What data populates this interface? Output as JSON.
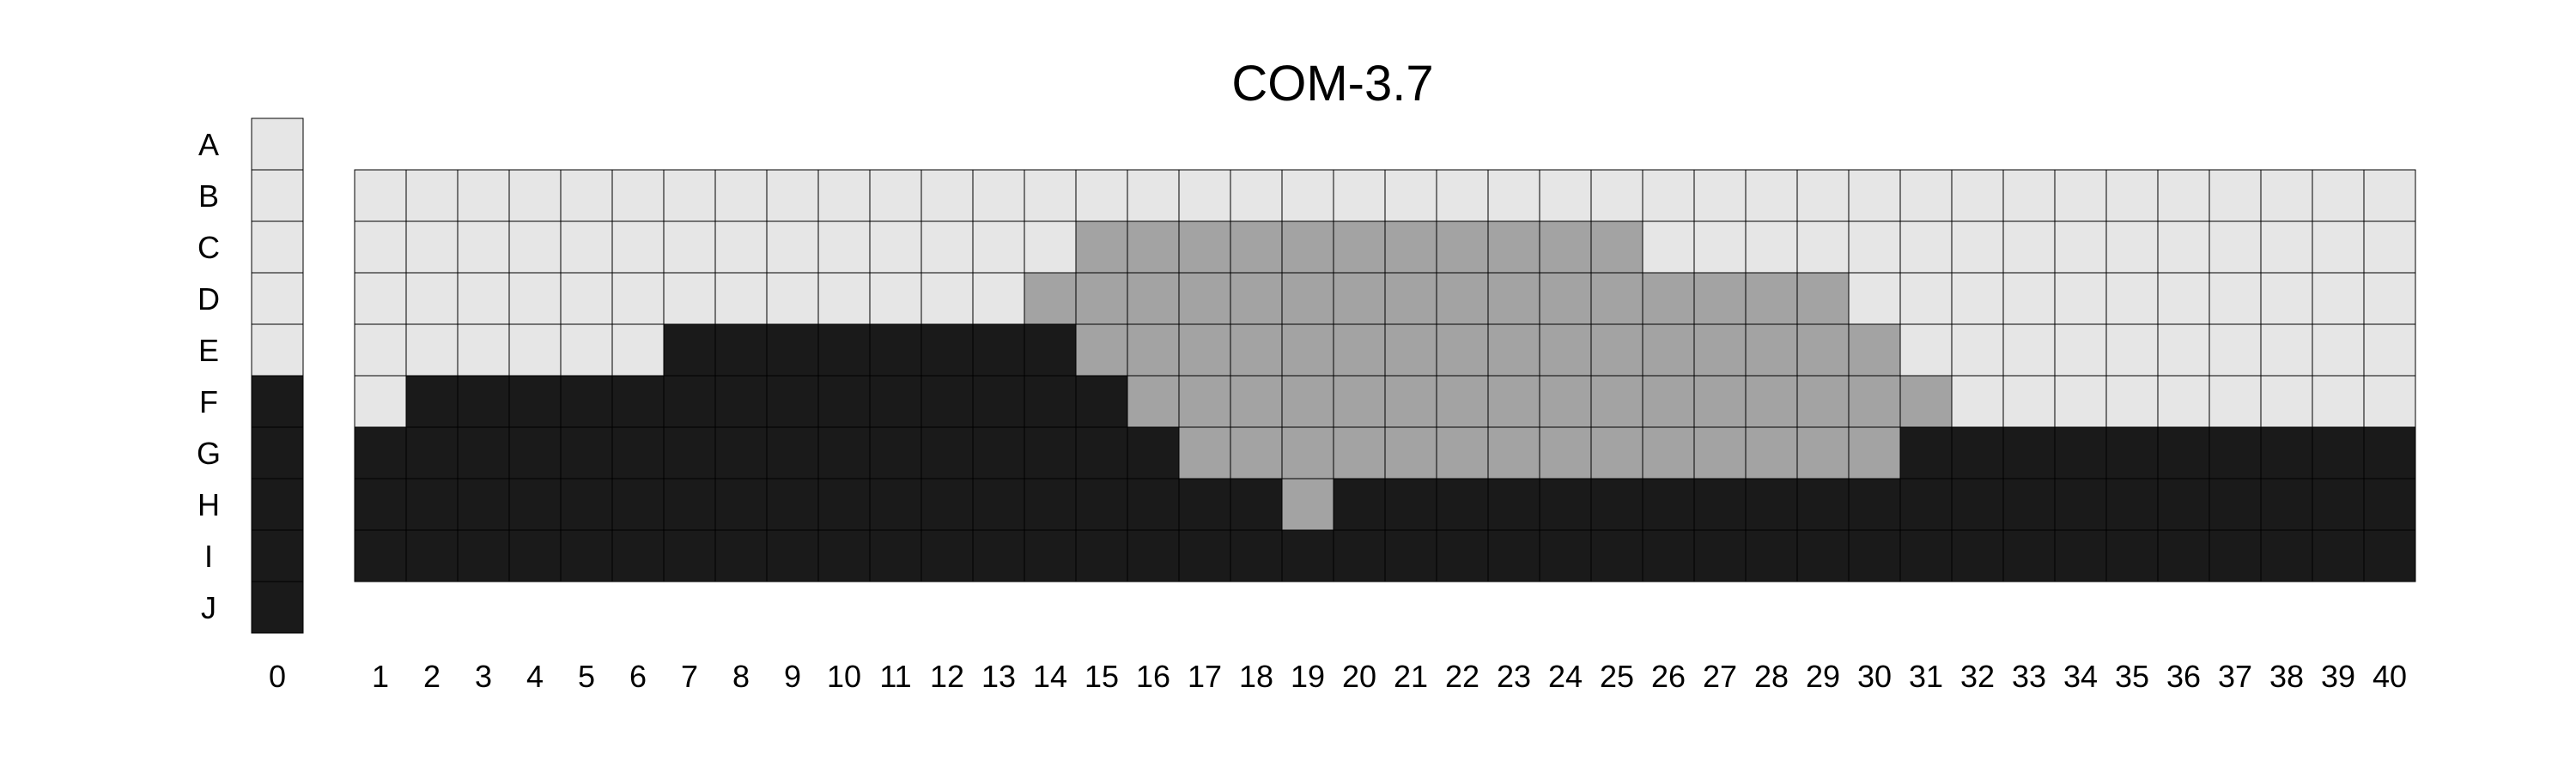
{
  "chart_data": {
    "type": "heatmap",
    "title": "COM-3.7",
    "colors": {
      "light": "#e6e6e6",
      "medium": "#a3a3a3",
      "dark": "#1a1a1a"
    },
    "rows": [
      "A",
      "B",
      "C",
      "D",
      "E",
      "F",
      "G",
      "H",
      "I",
      "J"
    ],
    "reference_column": {
      "label": "0",
      "cells": [
        "light",
        "light",
        "light",
        "light",
        "light",
        "dark",
        "dark",
        "dark",
        "dark",
        "dark"
      ]
    },
    "grid_columns": [
      "1",
      "2",
      "3",
      "4",
      "5",
      "6",
      "7",
      "8",
      "9",
      "10",
      "11",
      "12",
      "13",
      "14",
      "15",
      "16",
      "17",
      "18",
      "19",
      "20",
      "21",
      "22",
      "23",
      "24",
      "25",
      "26",
      "27",
      "28",
      "29",
      "30",
      "31",
      "32",
      "33",
      "34",
      "35",
      "36",
      "37",
      "38",
      "39",
      "40"
    ],
    "grid_rows": [
      "B",
      "C",
      "D",
      "E",
      "F",
      "G",
      "H",
      "I"
    ],
    "grid": [
      [
        "light",
        "light",
        "light",
        "light",
        "light",
        "light",
        "light",
        "light",
        "light",
        "light",
        "light",
        "light",
        "light",
        "light",
        "light",
        "light",
        "light",
        "light",
        "light",
        "light",
        "light",
        "light",
        "light",
        "light",
        "light",
        "light",
        "light",
        "light",
        "light",
        "light",
        "light",
        "light",
        "light",
        "light",
        "light",
        "light",
        "light",
        "light",
        "light",
        "light"
      ],
      [
        "light",
        "light",
        "light",
        "light",
        "light",
        "light",
        "light",
        "light",
        "light",
        "light",
        "light",
        "light",
        "light",
        "light",
        "medium",
        "medium",
        "medium",
        "medium",
        "medium",
        "medium",
        "medium",
        "medium",
        "medium",
        "medium",
        "medium",
        "light",
        "light",
        "light",
        "light",
        "light",
        "light",
        "light",
        "light",
        "light",
        "light",
        "light",
        "light",
        "light",
        "light",
        "light"
      ],
      [
        "light",
        "light",
        "light",
        "light",
        "light",
        "light",
        "light",
        "light",
        "light",
        "light",
        "light",
        "light",
        "light",
        "medium",
        "medium",
        "medium",
        "medium",
        "medium",
        "medium",
        "medium",
        "medium",
        "medium",
        "medium",
        "medium",
        "medium",
        "medium",
        "medium",
        "medium",
        "medium",
        "light",
        "light",
        "light",
        "light",
        "light",
        "light",
        "light",
        "light",
        "light",
        "light",
        "light"
      ],
      [
        "light",
        "light",
        "light",
        "light",
        "light",
        "light",
        "dark",
        "dark",
        "dark",
        "dark",
        "dark",
        "dark",
        "dark",
        "dark",
        "medium",
        "medium",
        "medium",
        "medium",
        "medium",
        "medium",
        "medium",
        "medium",
        "medium",
        "medium",
        "medium",
        "medium",
        "medium",
        "medium",
        "medium",
        "medium",
        "light",
        "light",
        "light",
        "light",
        "light",
        "light",
        "light",
        "light",
        "light",
        "light"
      ],
      [
        "light",
        "dark",
        "dark",
        "dark",
        "dark",
        "dark",
        "dark",
        "dark",
        "dark",
        "dark",
        "dark",
        "dark",
        "dark",
        "dark",
        "dark",
        "medium",
        "medium",
        "medium",
        "medium",
        "medium",
        "medium",
        "medium",
        "medium",
        "medium",
        "medium",
        "medium",
        "medium",
        "medium",
        "medium",
        "medium",
        "medium",
        "light",
        "light",
        "light",
        "light",
        "light",
        "light",
        "light",
        "light",
        "light"
      ],
      [
        "dark",
        "dark",
        "dark",
        "dark",
        "dark",
        "dark",
        "dark",
        "dark",
        "dark",
        "dark",
        "dark",
        "dark",
        "dark",
        "dark",
        "dark",
        "dark",
        "medium",
        "medium",
        "medium",
        "medium",
        "medium",
        "medium",
        "medium",
        "medium",
        "medium",
        "medium",
        "medium",
        "medium",
        "medium",
        "medium",
        "dark",
        "dark",
        "dark",
        "dark",
        "dark",
        "dark",
        "dark",
        "dark",
        "dark",
        "dark"
      ],
      [
        "dark",
        "dark",
        "dark",
        "dark",
        "dark",
        "dark",
        "dark",
        "dark",
        "dark",
        "dark",
        "dark",
        "dark",
        "dark",
        "dark",
        "dark",
        "dark",
        "dark",
        "dark",
        "medium",
        "dark",
        "dark",
        "dark",
        "dark",
        "dark",
        "dark",
        "dark",
        "dark",
        "dark",
        "dark",
        "dark",
        "dark",
        "dark",
        "dark",
        "dark",
        "dark",
        "dark",
        "dark",
        "dark",
        "dark",
        "dark"
      ],
      [
        "dark",
        "dark",
        "dark",
        "dark",
        "dark",
        "dark",
        "dark",
        "dark",
        "dark",
        "dark",
        "dark",
        "dark",
        "dark",
        "dark",
        "dark",
        "dark",
        "dark",
        "dark",
        "dark",
        "dark",
        "dark",
        "dark",
        "dark",
        "dark",
        "dark",
        "dark",
        "dark",
        "dark",
        "dark",
        "dark",
        "dark",
        "dark",
        "dark",
        "dark",
        "dark",
        "dark",
        "dark",
        "dark",
        "dark",
        "dark"
      ]
    ]
  }
}
